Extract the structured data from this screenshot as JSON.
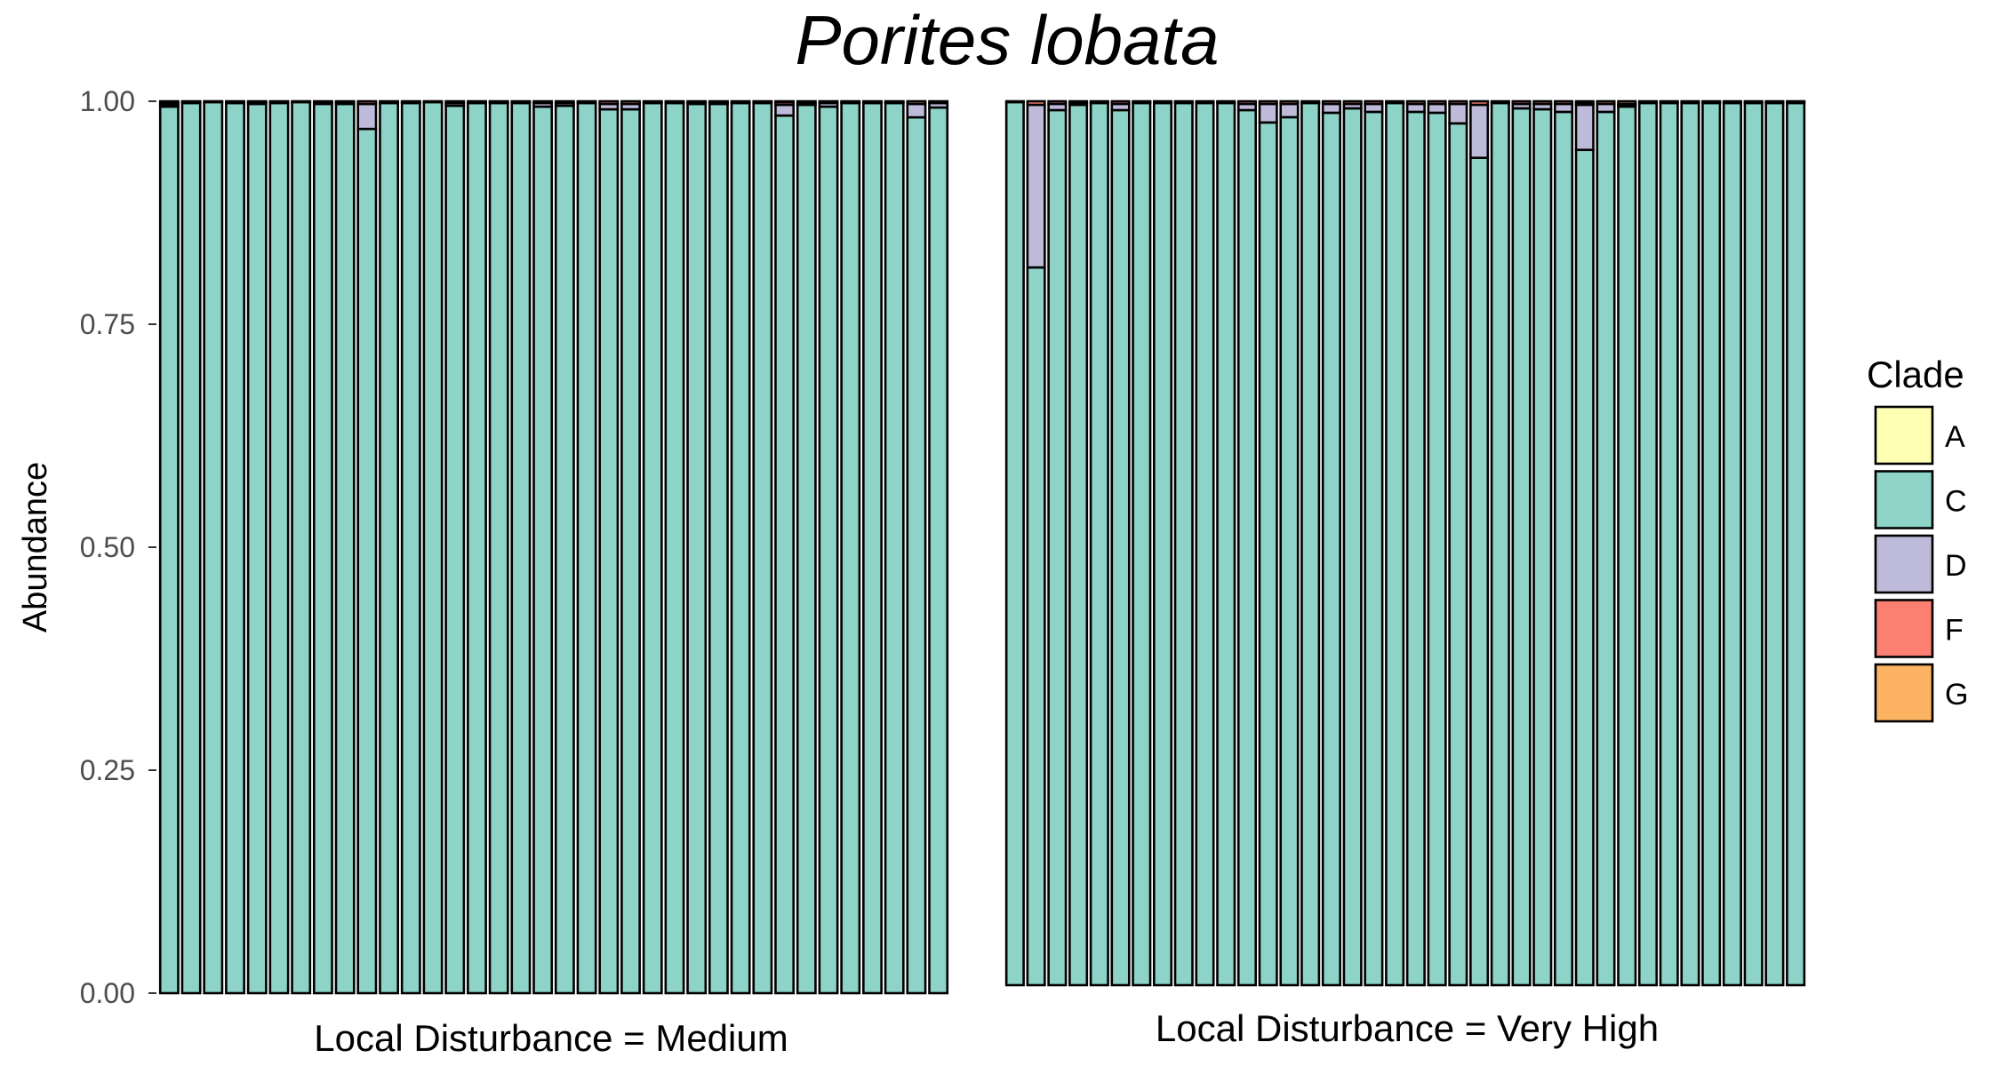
{
  "chart_data": {
    "type": "bar",
    "stacked": true,
    "title": "Porites lobata",
    "ylabel": "Abundance",
    "ylim": [
      0,
      1
    ],
    "y_ticks": [
      "0.00",
      "0.25",
      "0.50",
      "0.75",
      "1.00"
    ],
    "grid": false,
    "legend": {
      "title": "Clade",
      "position": "right",
      "entries": [
        {
          "label": "A",
          "color": "#FFFFB3"
        },
        {
          "label": "C",
          "color": "#8DD3C7"
        },
        {
          "label": "D",
          "color": "#BEBADA"
        },
        {
          "label": "F",
          "color": "#FB8072"
        },
        {
          "label": "G",
          "color": "#FDB462"
        }
      ]
    },
    "panels": [
      {
        "label": "Local Disturbance = Medium",
        "samples": [
          {
            "A": 0.0,
            "C": 0.994,
            "D": 0.002,
            "F": 0.002,
            "G": 0.002
          },
          {
            "A": 0.0,
            "C": 0.998,
            "D": 0.001,
            "F": 0.001,
            "G": 0.0
          },
          {
            "A": 0.0,
            "C": 0.999,
            "D": 0.001,
            "F": 0.0,
            "G": 0.0
          },
          {
            "A": 0.0,
            "C": 0.998,
            "D": 0.001,
            "F": 0.001,
            "G": 0.0
          },
          {
            "A": 0.0,
            "C": 0.997,
            "D": 0.002,
            "F": 0.001,
            "G": 0.0
          },
          {
            "A": 0.0,
            "C": 0.998,
            "D": 0.001,
            "F": 0.001,
            "G": 0.0
          },
          {
            "A": 0.0,
            "C": 0.999,
            "D": 0.001,
            "F": 0.0,
            "G": 0.0
          },
          {
            "A": 0.0,
            "C": 0.997,
            "D": 0.002,
            "F": 0.001,
            "G": 0.0
          },
          {
            "A": 0.0,
            "C": 0.997,
            "D": 0.002,
            "F": 0.001,
            "G": 0.0
          },
          {
            "A": 0.0,
            "C": 0.969,
            "D": 0.028,
            "F": 0.003,
            "G": 0.0
          },
          {
            "A": 0.0,
            "C": 0.998,
            "D": 0.001,
            "F": 0.001,
            "G": 0.0
          },
          {
            "A": 0.0,
            "C": 0.998,
            "D": 0.001,
            "F": 0.001,
            "G": 0.0
          },
          {
            "A": 0.0,
            "C": 0.999,
            "D": 0.001,
            "F": 0.0,
            "G": 0.0
          },
          {
            "A": 0.0,
            "C": 0.995,
            "D": 0.003,
            "F": 0.002,
            "G": 0.0
          },
          {
            "A": 0.0,
            "C": 0.998,
            "D": 0.001,
            "F": 0.001,
            "G": 0.0
          },
          {
            "A": 0.0,
            "C": 0.998,
            "D": 0.001,
            "F": 0.001,
            "G": 0.0
          },
          {
            "A": 0.0,
            "C": 0.998,
            "D": 0.001,
            "F": 0.001,
            "G": 0.0
          },
          {
            "A": 0.0,
            "C": 0.994,
            "D": 0.004,
            "F": 0.002,
            "G": 0.0
          },
          {
            "A": 0.0,
            "C": 0.995,
            "D": 0.003,
            "F": 0.002,
            "G": 0.0
          },
          {
            "A": 0.0,
            "C": 0.998,
            "D": 0.001,
            "F": 0.001,
            "G": 0.0
          },
          {
            "A": 0.0,
            "C": 0.991,
            "D": 0.006,
            "F": 0.003,
            "G": 0.0
          },
          {
            "A": 0.0,
            "C": 0.991,
            "D": 0.006,
            "F": 0.003,
            "G": 0.0
          },
          {
            "A": 0.0,
            "C": 0.998,
            "D": 0.001,
            "F": 0.001,
            "G": 0.0
          },
          {
            "A": 0.0,
            "C": 0.998,
            "D": 0.001,
            "F": 0.001,
            "G": 0.0
          },
          {
            "A": 0.0,
            "C": 0.997,
            "D": 0.002,
            "F": 0.001,
            "G": 0.0
          },
          {
            "A": 0.0,
            "C": 0.997,
            "D": 0.001,
            "F": 0.001,
            "G": 0.001
          },
          {
            "A": 0.0,
            "C": 0.998,
            "D": 0.001,
            "F": 0.001,
            "G": 0.0
          },
          {
            "A": 0.0,
            "C": 0.998,
            "D": 0.001,
            "F": 0.001,
            "G": 0.0
          },
          {
            "A": 0.0,
            "C": 0.984,
            "D": 0.012,
            "F": 0.003,
            "G": 0.001
          },
          {
            "A": 0.0,
            "C": 0.996,
            "D": 0.002,
            "F": 0.002,
            "G": 0.0
          },
          {
            "A": 0.0,
            "C": 0.994,
            "D": 0.004,
            "F": 0.002,
            "G": 0.0
          },
          {
            "A": 0.0,
            "C": 0.998,
            "D": 0.001,
            "F": 0.001,
            "G": 0.0
          },
          {
            "A": 0.0,
            "C": 0.998,
            "D": 0.001,
            "F": 0.001,
            "G": 0.0
          },
          {
            "A": 0.0,
            "C": 0.998,
            "D": 0.001,
            "F": 0.001,
            "G": 0.0
          },
          {
            "A": 0.0,
            "C": 0.982,
            "D": 0.015,
            "F": 0.003,
            "G": 0.0
          },
          {
            "A": 0.0,
            "C": 0.993,
            "D": 0.005,
            "F": 0.002,
            "G": 0.0
          }
        ]
      },
      {
        "label": "Local Disturbance = Very High",
        "samples": [
          {
            "A": 0.0,
            "C": 0.999,
            "D": 0.001,
            "F": 0.0,
            "G": 0.0
          },
          {
            "A": 0.0,
            "C": 0.812,
            "D": 0.184,
            "F": 0.004,
            "G": 0.0
          },
          {
            "A": 0.0,
            "C": 0.99,
            "D": 0.007,
            "F": 0.003,
            "G": 0.0
          },
          {
            "A": 0.0,
            "C": 0.996,
            "D": 0.002,
            "F": 0.002,
            "G": 0.0
          },
          {
            "A": 0.0,
            "C": 0.998,
            "D": 0.001,
            "F": 0.001,
            "G": 0.0
          },
          {
            "A": 0.0,
            "C": 0.99,
            "D": 0.007,
            "F": 0.003,
            "G": 0.0
          },
          {
            "A": 0.0,
            "C": 0.998,
            "D": 0.001,
            "F": 0.001,
            "G": 0.0
          },
          {
            "A": 0.0,
            "C": 0.998,
            "D": 0.001,
            "F": 0.001,
            "G": 0.0
          },
          {
            "A": 0.0,
            "C": 0.998,
            "D": 0.001,
            "F": 0.001,
            "G": 0.0
          },
          {
            "A": 0.0,
            "C": 0.998,
            "D": 0.001,
            "F": 0.001,
            "G": 0.0
          },
          {
            "A": 0.0,
            "C": 0.998,
            "D": 0.001,
            "F": 0.001,
            "G": 0.0
          },
          {
            "A": 0.0,
            "C": 0.99,
            "D": 0.007,
            "F": 0.003,
            "G": 0.0
          },
          {
            "A": 0.0,
            "C": 0.976,
            "D": 0.021,
            "F": 0.003,
            "G": 0.0
          },
          {
            "A": 0.0,
            "C": 0.982,
            "D": 0.015,
            "F": 0.003,
            "G": 0.0
          },
          {
            "A": 0.0,
            "C": 0.998,
            "D": 0.001,
            "F": 0.001,
            "G": 0.0
          },
          {
            "A": 0.0,
            "C": 0.987,
            "D": 0.01,
            "F": 0.003,
            "G": 0.0
          },
          {
            "A": 0.0,
            "C": 0.992,
            "D": 0.005,
            "F": 0.003,
            "G": 0.0
          },
          {
            "A": 0.0,
            "C": 0.988,
            "D": 0.009,
            "F": 0.003,
            "G": 0.0
          },
          {
            "A": 0.0,
            "C": 0.998,
            "D": 0.001,
            "F": 0.001,
            "G": 0.0
          },
          {
            "A": 0.0,
            "C": 0.988,
            "D": 0.009,
            "F": 0.003,
            "G": 0.0
          },
          {
            "A": 0.0,
            "C": 0.987,
            "D": 0.01,
            "F": 0.003,
            "G": 0.0
          },
          {
            "A": 0.0,
            "C": 0.975,
            "D": 0.022,
            "F": 0.003,
            "G": 0.0
          },
          {
            "A": 0.0,
            "C": 0.936,
            "D": 0.06,
            "F": 0.004,
            "G": 0.0
          },
          {
            "A": 0.0,
            "C": 0.998,
            "D": 0.001,
            "F": 0.001,
            "G": 0.0
          },
          {
            "A": 0.0,
            "C": 0.992,
            "D": 0.005,
            "F": 0.003,
            "G": 0.0
          },
          {
            "A": 0.0,
            "C": 0.991,
            "D": 0.006,
            "F": 0.003,
            "G": 0.0
          },
          {
            "A": 0.0,
            "C": 0.988,
            "D": 0.009,
            "F": 0.003,
            "G": 0.0
          },
          {
            "A": 0.0,
            "C": 0.945,
            "D": 0.051,
            "F": 0.002,
            "G": 0.002
          },
          {
            "A": 0.0,
            "C": 0.988,
            "D": 0.009,
            "F": 0.003,
            "G": 0.0
          },
          {
            "A": 0.0,
            "C": 0.994,
            "D": 0.002,
            "F": 0.001,
            "G": 0.003
          },
          {
            "A": 0.0,
            "C": 0.998,
            "D": 0.001,
            "F": 0.001,
            "G": 0.0
          },
          {
            "A": 0.0,
            "C": 0.998,
            "D": 0.001,
            "F": 0.001,
            "G": 0.0
          },
          {
            "A": 0.0,
            "C": 0.998,
            "D": 0.001,
            "F": 0.001,
            "G": 0.0
          },
          {
            "A": 0.0,
            "C": 0.998,
            "D": 0.001,
            "F": 0.001,
            "G": 0.0
          },
          {
            "A": 0.0,
            "C": 0.998,
            "D": 0.001,
            "F": 0.001,
            "G": 0.0
          },
          {
            "A": 0.0,
            "C": 0.998,
            "D": 0.001,
            "F": 0.001,
            "G": 0.0
          },
          {
            "A": 0.0,
            "C": 0.998,
            "D": 0.001,
            "F": 0.001,
            "G": 0.0
          },
          {
            "A": 0.0,
            "C": 0.998,
            "D": 0.001,
            "F": 0.001,
            "G": 0.0
          }
        ]
      }
    ]
  }
}
